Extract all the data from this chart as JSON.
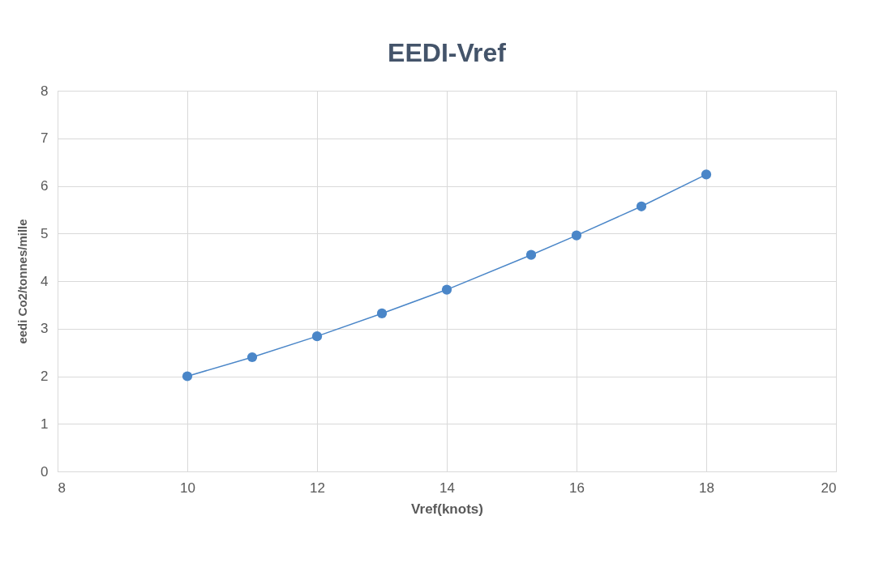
{
  "chart_data": {
    "type": "line",
    "title": "EEDI-Vref",
    "xlabel": "Vref(knots)",
    "ylabel": "eedi Co2/tonnes/mille",
    "x": [
      10,
      11,
      12,
      13,
      14,
      15.3,
      16,
      17,
      18
    ],
    "series": [
      {
        "color": "#4a86c8",
        "values": [
          2.0,
          2.4,
          2.84,
          3.32,
          3.82,
          4.55,
          4.96,
          5.57,
          6.24
        ]
      }
    ],
    "xlim": [
      8,
      20
    ],
    "xticks": [
      8,
      10,
      12,
      14,
      16,
      18,
      20
    ],
    "ylim": [
      0,
      8
    ],
    "yticks": [
      0,
      1,
      2,
      3,
      4,
      5,
      6,
      7,
      8
    ],
    "grid": true,
    "marker": "circle",
    "line_style": "solid"
  }
}
